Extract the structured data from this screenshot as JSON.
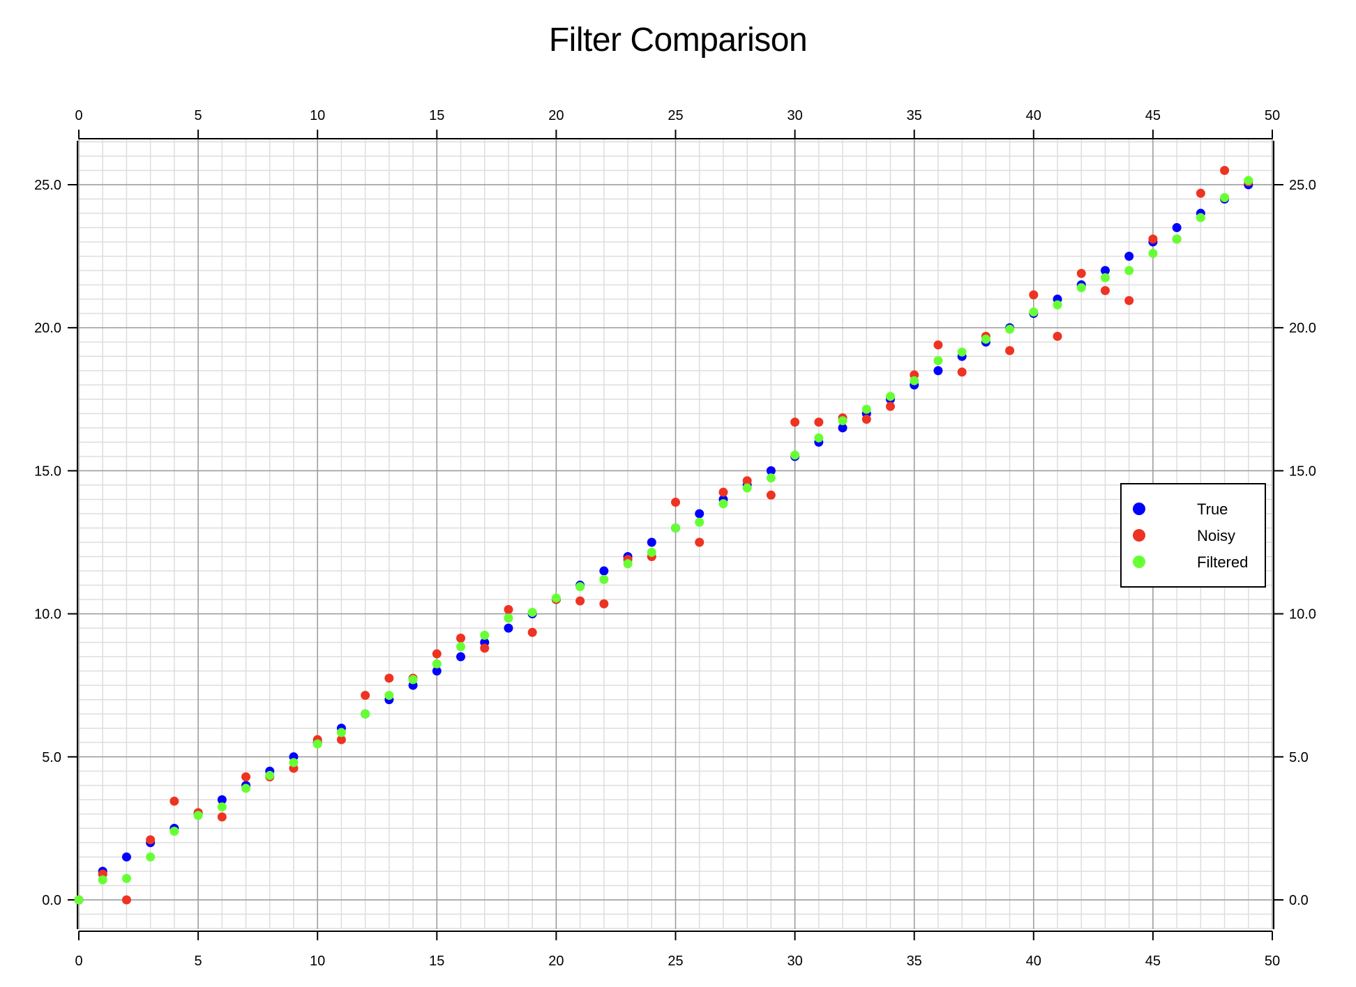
{
  "chart_data": {
    "type": "scatter",
    "title": "Filter Comparison",
    "xlabel": "",
    "ylabel": "",
    "xlim": [
      0,
      50
    ],
    "ylim": [
      -1.1,
      26.6
    ],
    "x_ticks": [
      0,
      5,
      10,
      15,
      20,
      25,
      30,
      35,
      40,
      45,
      50
    ],
    "x_tick_labels": [
      "0",
      "5",
      "10",
      "15",
      "20",
      "25",
      "30",
      "35",
      "40",
      "45",
      "50"
    ],
    "y_ticks": [
      0,
      5,
      10,
      15,
      20,
      25
    ],
    "y_tick_labels": [
      "0.0",
      "5.0",
      "10.0",
      "15.0",
      "20.0",
      "25.0"
    ],
    "grid": true,
    "grid_minor_x": 1,
    "grid_minor_y": 0.5,
    "axes_mirrored": true,
    "legend_position": "right, middle",
    "x": [
      0,
      1,
      2,
      3,
      4,
      5,
      6,
      7,
      8,
      9,
      10,
      11,
      12,
      13,
      14,
      15,
      16,
      17,
      18,
      19,
      20,
      21,
      22,
      23,
      24,
      25,
      26,
      27,
      28,
      29,
      30,
      31,
      32,
      33,
      34,
      35,
      36,
      37,
      38,
      39,
      40,
      41,
      42,
      43,
      44,
      45,
      46,
      47,
      48,
      49
    ],
    "series": [
      {
        "name": "True",
        "color": "#0000ff",
        "values": [
          0.0,
          1.0,
          1.5,
          2.0,
          2.5,
          3.0,
          3.5,
          4.0,
          4.5,
          5.0,
          5.5,
          6.0,
          6.5,
          7.0,
          7.5,
          8.0,
          8.5,
          9.0,
          9.5,
          10.0,
          10.5,
          11.0,
          11.5,
          12.0,
          12.5,
          13.0,
          13.5,
          14.0,
          14.5,
          15.0,
          15.5,
          16.0,
          16.5,
          17.0,
          17.5,
          18.0,
          18.5,
          19.0,
          19.5,
          20.0,
          20.5,
          21.0,
          21.5,
          22.0,
          22.5,
          23.0,
          23.5,
          24.0,
          24.5,
          25.0
        ]
      },
      {
        "name": "Noisy",
        "color": "#ee3322",
        "values": [
          0.0,
          0.9,
          0.0,
          2.1,
          3.45,
          3.05,
          2.9,
          4.3,
          4.3,
          4.6,
          5.6,
          5.6,
          7.15,
          7.75,
          7.75,
          8.6,
          9.15,
          8.8,
          10.15,
          9.35,
          10.5,
          10.45,
          10.35,
          11.9,
          12.0,
          13.9,
          12.5,
          14.25,
          14.65,
          14.15,
          16.7,
          16.7,
          16.85,
          16.8,
          17.25,
          18.35,
          19.4,
          18.45,
          19.7,
          19.2,
          21.15,
          19.7,
          21.9,
          21.3,
          20.95,
          23.1,
          23.1,
          24.7,
          25.5,
          25.1
        ]
      },
      {
        "name": "Filtered",
        "color": "#66ff33",
        "values": [
          0.0,
          0.7,
          0.75,
          1.5,
          2.4,
          2.95,
          3.25,
          3.9,
          4.35,
          4.8,
          5.45,
          5.85,
          6.5,
          7.15,
          7.7,
          8.25,
          8.85,
          9.25,
          9.85,
          10.05,
          10.55,
          10.95,
          11.2,
          11.75,
          12.15,
          13.0,
          13.2,
          13.85,
          14.4,
          14.75,
          15.55,
          16.15,
          16.75,
          17.15,
          17.6,
          18.15,
          18.85,
          19.15,
          19.6,
          19.95,
          20.55,
          20.8,
          21.4,
          21.75,
          22.0,
          22.6,
          23.1,
          23.85,
          24.55,
          25.15
        ]
      }
    ]
  },
  "legend": {
    "items": [
      {
        "label": "True",
        "color": "#0000ff"
      },
      {
        "label": "Noisy",
        "color": "#ee3322"
      },
      {
        "label": "Filtered",
        "color": "#66ff33"
      }
    ]
  }
}
